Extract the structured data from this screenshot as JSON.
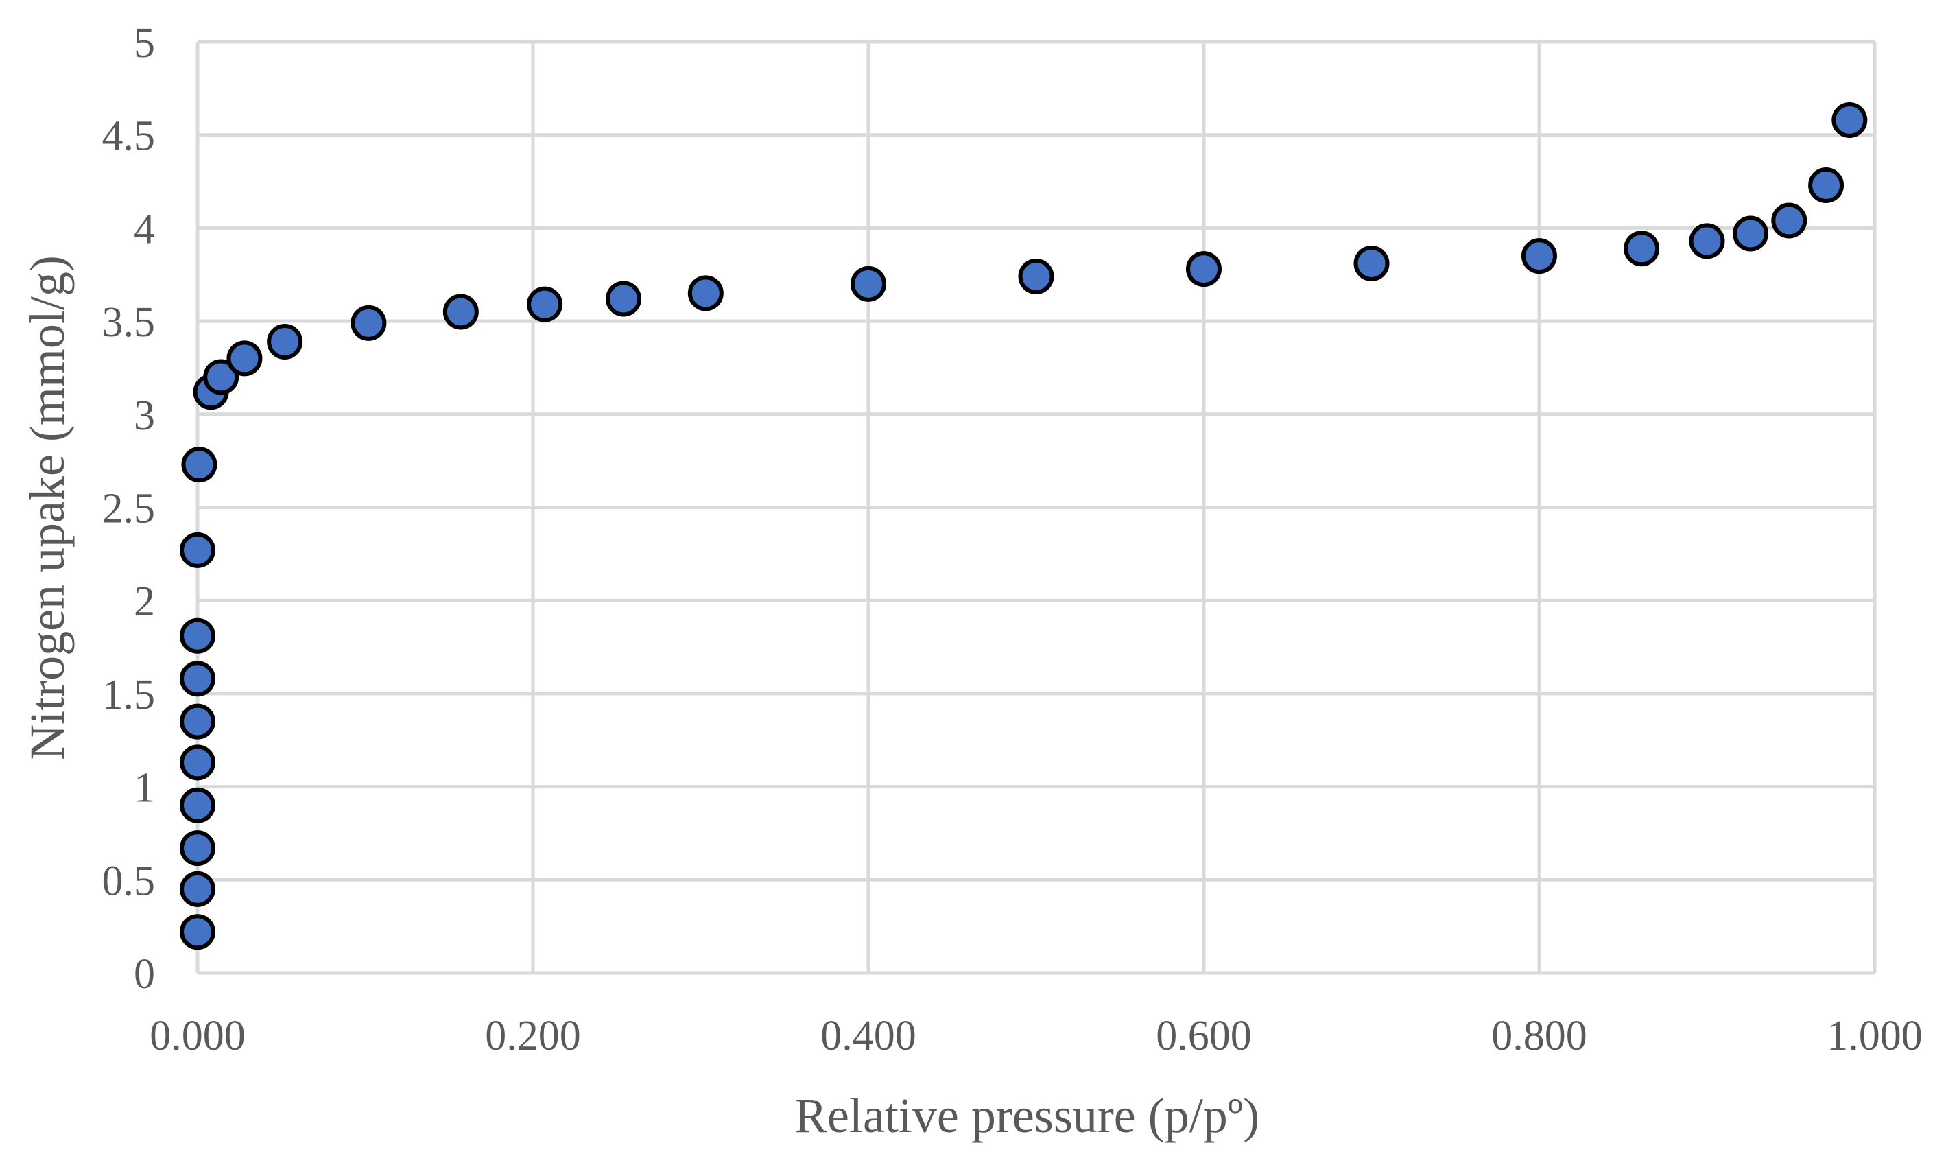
{
  "colors": {
    "marker_fill": "#4472c4",
    "marker_stroke": "#000000",
    "grid": "#d9d9d9",
    "text": "#595959"
  },
  "chart_data": {
    "type": "scatter",
    "xlabel": "Relative pressure (p/pº)",
    "ylabel": "Nitrogen upake (mmol/g)",
    "xlim": [
      0,
      1
    ],
    "ylim": [
      0,
      5
    ],
    "x_ticks": [
      "0.000",
      "0.200",
      "0.400",
      "0.600",
      "0.800",
      "1.000"
    ],
    "y_ticks": [
      "0",
      "0.5",
      "1",
      "1.5",
      "2",
      "2.5",
      "3",
      "3.5",
      "4",
      "4.5",
      "5"
    ],
    "grid": true,
    "legend": "none",
    "series": [
      {
        "points": [
          [
            0.0,
            0.22
          ],
          [
            0.0,
            0.45
          ],
          [
            0.0,
            0.67
          ],
          [
            0.0,
            0.9
          ],
          [
            0.0,
            1.13
          ],
          [
            0.0,
            1.35
          ],
          [
            0.0,
            1.58
          ],
          [
            0.0,
            1.81
          ],
          [
            0.0,
            2.27
          ],
          [
            0.001,
            2.73
          ],
          [
            0.008,
            3.12
          ],
          [
            0.014,
            3.2
          ],
          [
            0.028,
            3.3
          ],
          [
            0.052,
            3.39
          ],
          [
            0.102,
            3.49
          ],
          [
            0.157,
            3.55
          ],
          [
            0.207,
            3.59
          ],
          [
            0.254,
            3.62
          ],
          [
            0.303,
            3.65
          ],
          [
            0.4,
            3.7
          ],
          [
            0.5,
            3.74
          ],
          [
            0.6,
            3.78
          ],
          [
            0.7,
            3.81
          ],
          [
            0.8,
            3.85
          ],
          [
            0.861,
            3.89
          ],
          [
            0.9,
            3.93
          ],
          [
            0.926,
            3.97
          ],
          [
            0.949,
            4.04
          ],
          [
            0.971,
            4.23
          ],
          [
            0.985,
            4.58
          ]
        ]
      }
    ]
  }
}
